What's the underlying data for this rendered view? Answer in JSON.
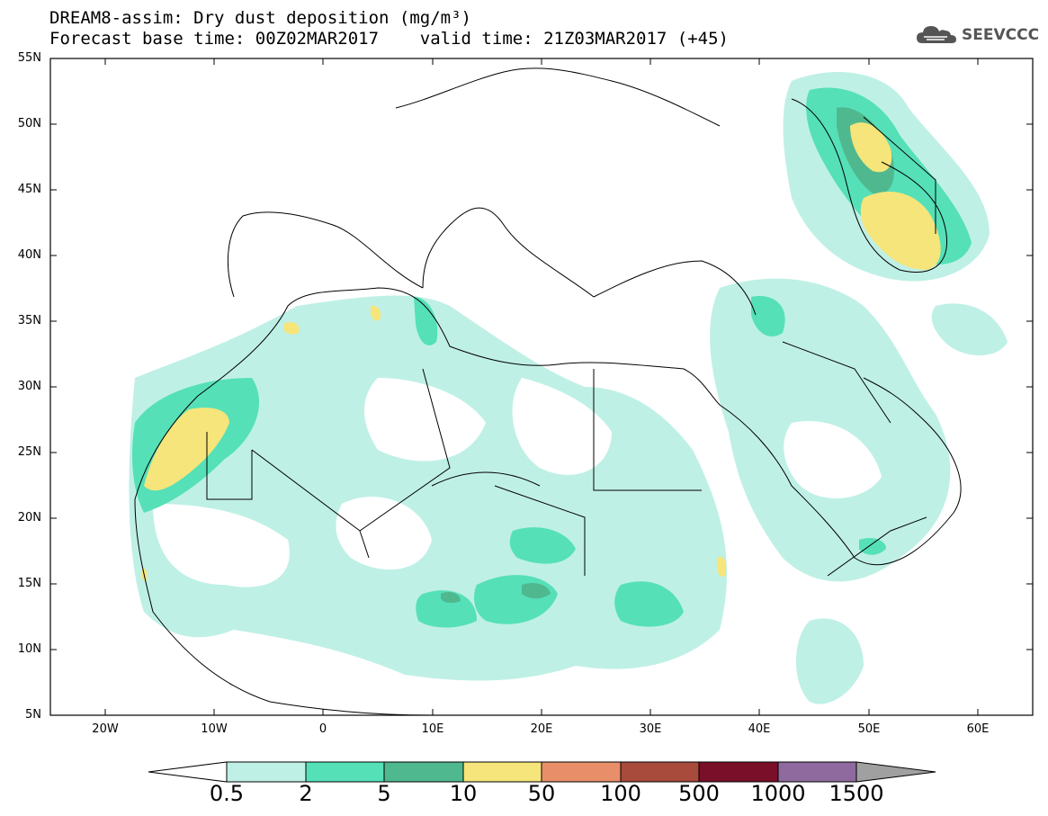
{
  "header": {
    "title_line1": "DREAM8-assim: Dry dust deposition (mg/m³)",
    "title_line2": "Forecast base time: 00Z02MAR2017    valid time: 21Z03MAR2017 (+45)"
  },
  "logo": {
    "text": "SEEVCCC",
    "icon": "cloud-icon"
  },
  "map": {
    "lat_labels": [
      "55N",
      "50N",
      "45N",
      "40N",
      "35N",
      "30N",
      "25N",
      "20N",
      "15N",
      "10N",
      "5N"
    ],
    "lon_labels": [
      "20W",
      "10W",
      "0",
      "10E",
      "20E",
      "30E",
      "40E",
      "50E",
      "60E"
    ],
    "extent": {
      "lon_min": -25,
      "lon_max": 65,
      "lat_min": 5,
      "lat_max": 55
    }
  },
  "legend": {
    "labels": [
      "0.5",
      "2",
      "5",
      "10",
      "50",
      "100",
      "500",
      "1000",
      "1500"
    ],
    "colors": [
      "#bff0e6",
      "#55e0b8",
      "#50b88f",
      "#f5e57a",
      "#e88f6a",
      "#a84a3c",
      "#7a0f2a",
      "#8e6a9e"
    ],
    "under_color": "#ffffff",
    "over_color": "#a0a0a0"
  }
}
